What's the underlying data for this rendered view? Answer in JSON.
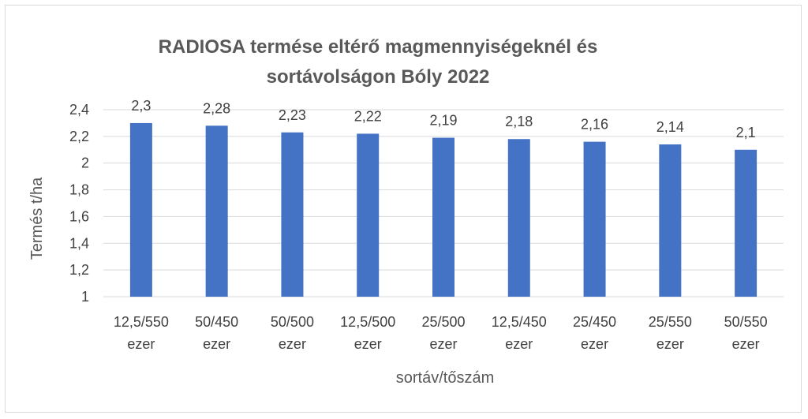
{
  "chart_data": {
    "type": "bar",
    "title": [
      "RADIOSA termése eltérő magmennyiségeknél és",
      "sortávolságon  Bóly 2022"
    ],
    "xlabel": "sortáv/tőszám",
    "ylabel": "Termés t/ha",
    "categories": [
      [
        "12,5/550",
        "ezer"
      ],
      [
        "50/450",
        "ezer"
      ],
      [
        "50/500",
        "ezer"
      ],
      [
        "12,5/500",
        "ezer"
      ],
      [
        "25/500",
        "ezer"
      ],
      [
        "12,5/450",
        "ezer"
      ],
      [
        "25/450",
        "ezer"
      ],
      [
        "25/550",
        "ezer"
      ],
      [
        "50/550",
        "ezer"
      ]
    ],
    "values": [
      2.3,
      2.28,
      2.23,
      2.22,
      2.19,
      2.18,
      2.16,
      2.14,
      2.1
    ],
    "data_labels": [
      "2,3",
      "2,28",
      "2,23",
      "2,22",
      "2,19",
      "2,18",
      "2,16",
      "2,14",
      "2,1"
    ],
    "ylim": [
      1,
      2.4
    ],
    "yticks": [
      1,
      1.2,
      1.4,
      1.6,
      1.8,
      2,
      2.2,
      2.4
    ],
    "ytick_labels": [
      "1",
      "1,2",
      "1,4",
      "1,6",
      "1,8",
      "2",
      "2,2",
      "2,4"
    ],
    "grid": true,
    "bar_color": "#4472c4",
    "grid_color": "#d9d9d9"
  }
}
